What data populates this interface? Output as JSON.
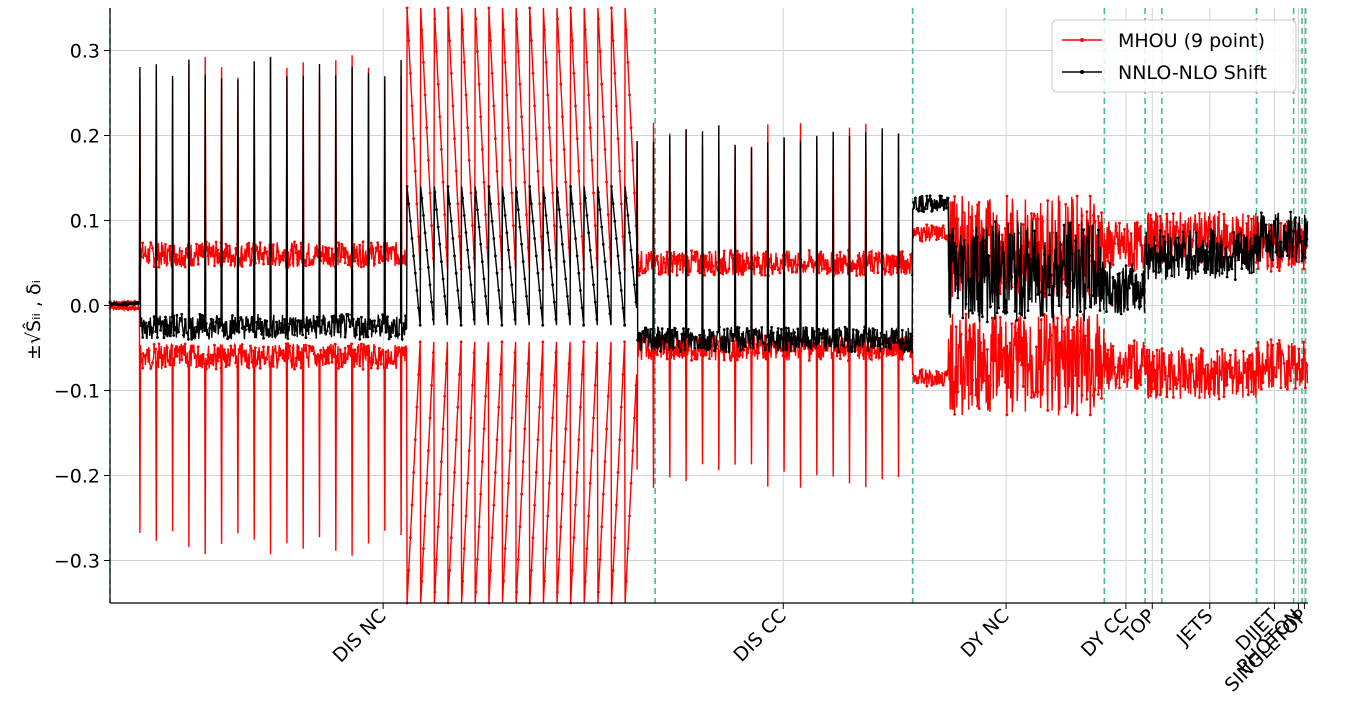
{
  "chart_data": {
    "type": "line",
    "ylabel": "±√Ŝᵢᵢ , δᵢ",
    "ylim": [
      -0.35,
      0.35
    ],
    "yticks": [
      -0.3,
      -0.2,
      -0.1,
      0.0,
      0.1,
      0.2,
      0.3
    ],
    "ytick_labels": [
      "−0.3",
      "−0.2",
      "−0.1",
      "0.0",
      "0.1",
      "0.2",
      "0.3"
    ],
    "grid": true,
    "legend_position": "top-right",
    "xlim": [
      0,
      1000
    ],
    "categories": [
      "DIS NC",
      "DIS CC",
      "DY NC",
      "DY CC",
      "TOP",
      "JETS",
      "DIJET",
      "PHOTON",
      "SINGLETOP"
    ],
    "category_centers": [
      228,
      562,
      748,
      848,
      870,
      918,
      972,
      992,
      997
    ],
    "dataset_boundaries": [
      0,
      455,
      670,
      830,
      864,
      878,
      957,
      988,
      995,
      998
    ],
    "series": [
      {
        "name": "MHOU (9 point)",
        "color": "#ff0000",
        "marker": "."
      },
      {
        "name": "NNLO-NLO Shift",
        "color": "#000000",
        "marker": "."
      }
    ],
    "segments": [
      {
        "x": [
          0,
          25
        ],
        "mhou": 0.003,
        "shift": 0.002,
        "shape": "flat"
      },
      {
        "x": [
          25,
          248
        ],
        "mhou": 0.06,
        "shift": -0.025,
        "shape": "spiky",
        "max": 0.28
      },
      {
        "x": [
          248,
          440
        ],
        "mhou": 0.35,
        "shift": 0.14,
        "shape": "decay"
      },
      {
        "x": [
          440,
          670
        ],
        "mhou": 0.05,
        "shift": -0.04,
        "shape": "spiky",
        "max": 0.2
      },
      {
        "x": [
          670,
          700
        ],
        "mhou": 0.085,
        "shift": 0.12,
        "shape": "block"
      },
      {
        "x": [
          700,
          830
        ],
        "mhou": 0.07,
        "shift": 0.04,
        "shape": "noisy",
        "max": 0.15
      },
      {
        "x": [
          830,
          864
        ],
        "mhou": 0.07,
        "shift": 0.02,
        "shape": "noisy"
      },
      {
        "x": [
          864,
          957
        ],
        "mhou": 0.08,
        "shift": 0.06,
        "shape": "noisy"
      },
      {
        "x": [
          957,
          1000
        ],
        "mhou": 0.07,
        "shift": 0.08,
        "shape": "noisy"
      }
    ],
    "colors": {
      "mhou": "#ff0000",
      "shift": "#000000",
      "boundary": "#3fbf8f",
      "grid": "#d3d3d3"
    }
  }
}
